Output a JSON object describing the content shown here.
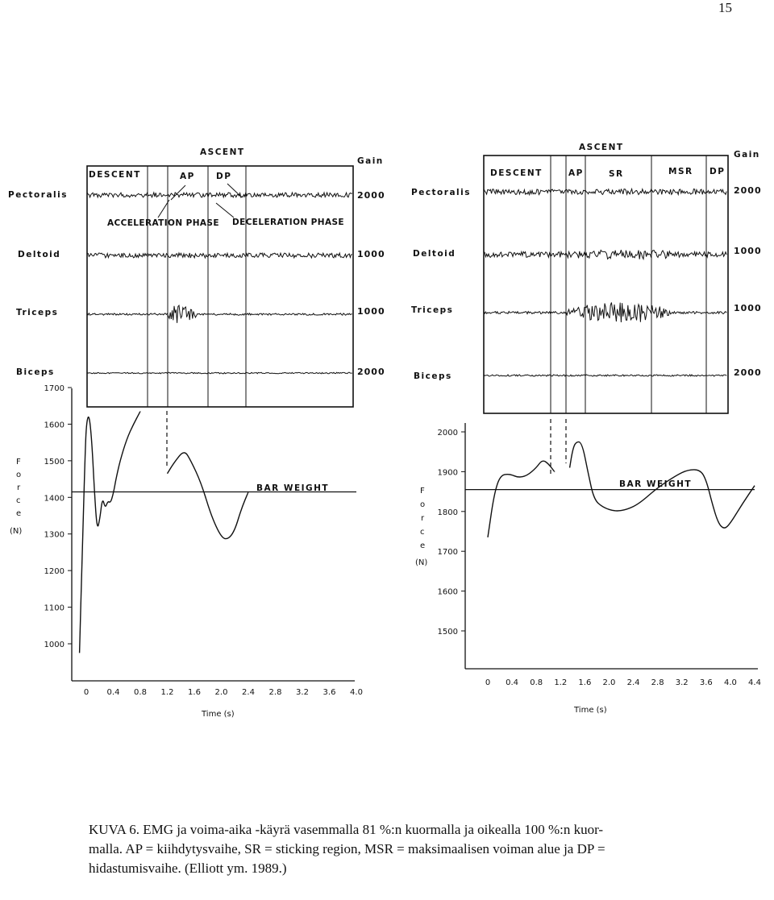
{
  "page_number": "15",
  "caption": {
    "line1": "KUVA 6. EMG ja voima-aika -käyrä vasemmalla 81 %:n kuormalla ja oikealla 100 %:n kuor-",
    "line2": "malla. AP = kiihdytysvaihe, SR = sticking region, MSR = maksimaalisen voiman alue ja DP =",
    "line3": "hidastumisvaihe. (Elliott ym. 1989.)"
  },
  "colors": {
    "ink": "#111111",
    "background": "#ffffff"
  },
  "panels": {
    "left": {
      "phase_header": "ASCENT",
      "gain_header": "Gain",
      "phases": [
        "DESCENT",
        "AP",
        "DP"
      ],
      "annotations": [
        "ACCELERATION PHASE",
        "DECELERATION PHASE"
      ],
      "muscles": [
        {
          "name": "Pectoralis",
          "gain": "2000"
        },
        {
          "name": "Deltoid",
          "gain": "1000"
        },
        {
          "name": "Triceps",
          "gain": "1000"
        },
        {
          "name": "Biceps",
          "gain": "2000"
        }
      ],
      "bar_weight_label": "BAR WEIGHT",
      "ylabel_letters": [
        "F",
        "o",
        "r",
        "c",
        "e"
      ],
      "yunit": "(N)",
      "xlabel": "Time (s)",
      "yticks": [
        "1700",
        "1600",
        "1500",
        "1400",
        "1300",
        "1200",
        "1100",
        "1000"
      ],
      "xticks": [
        "0",
        "0.4",
        "0.8",
        "1.2",
        "1.6",
        "2.0",
        "2.4",
        "2.8",
        "3.2",
        "3.6",
        "4.0"
      ]
    },
    "right": {
      "phase_header": "ASCENT",
      "gain_header": "Gain",
      "phases": [
        "DESCENT",
        "AP",
        "SR",
        "MSR",
        "DP"
      ],
      "muscles": [
        {
          "name": "Pectoralis",
          "gain": "2000"
        },
        {
          "name": "Deltoid",
          "gain": "1000"
        },
        {
          "name": "Triceps",
          "gain": "1000"
        },
        {
          "name": "Biceps",
          "gain": "2000"
        }
      ],
      "bar_weight_label": "BAR WEIGHT",
      "ylabel_letters": [
        "F",
        "o",
        "r",
        "c",
        "e"
      ],
      "yunit": "(N)",
      "xlabel": "Time (s)",
      "yticks": [
        "2000",
        "1900",
        "1800",
        "1700",
        "1600",
        "1500"
      ],
      "xticks": [
        "0",
        "0.4",
        "0.8",
        "1.2",
        "1.6",
        "2.0",
        "2.4",
        "2.8",
        "3.2",
        "3.6",
        "4.0",
        "4.4"
      ]
    }
  },
  "chart_data": [
    {
      "type": "line",
      "xlabel": "Time (s)",
      "ylabel": "Force (N)",
      "xlim": [
        0,
        4.0
      ],
      "ylim": [
        950,
        1700
      ],
      "reference_line": {
        "label": "BAR WEIGHT",
        "y": 1415
      },
      "series": [
        {
          "x": [
            -0.1,
            -0.06,
            -0.02,
            0.0,
            0.04,
            0.08,
            0.12,
            0.16,
            0.2,
            0.24,
            0.28,
            0.32,
            0.36,
            0.4,
            0.44,
            0.5,
            0.6,
            0.7,
            0.8
          ],
          "y": [
            975,
            1250,
            1500,
            1600,
            1630,
            1560,
            1420,
            1310,
            1340,
            1400,
            1370,
            1390,
            1385,
            1410,
            1450,
            1500,
            1560,
            1600,
            1635
          ]
        },
        {
          "x": [
            1.2,
            1.3,
            1.45,
            1.55,
            1.7,
            1.85,
            2.0,
            2.1,
            2.2,
            2.3,
            2.4
          ],
          "y": [
            1465,
            1495,
            1530,
            1500,
            1440,
            1350,
            1290,
            1285,
            1310,
            1370,
            1415
          ]
        }
      ]
    },
    {
      "type": "line",
      "xlabel": "Time (s)",
      "ylabel": "Force (N)",
      "xlim": [
        0,
        4.4
      ],
      "ylim": [
        1400,
        2000
      ],
      "reference_line": {
        "label": "BAR WEIGHT",
        "y": 1855
      },
      "series": [
        {
          "x": [
            0.0,
            0.1,
            0.2,
            0.35,
            0.5,
            0.65,
            0.8,
            0.9,
            1.0,
            1.1
          ],
          "y": [
            1735,
            1840,
            1890,
            1895,
            1885,
            1890,
            1910,
            1930,
            1920,
            1900
          ]
        },
        {
          "x": [
            1.35,
            1.4,
            1.45,
            1.55,
            1.65,
            1.75,
            1.9,
            2.1,
            2.3,
            2.5,
            2.8,
            3.1,
            3.3,
            3.5,
            3.6,
            3.7,
            3.8,
            3.9,
            4.0,
            4.2,
            4.4
          ],
          "y": [
            1910,
            1955,
            1975,
            1975,
            1900,
            1830,
            1810,
            1800,
            1805,
            1820,
            1860,
            1890,
            1905,
            1905,
            1880,
            1820,
            1770,
            1755,
            1770,
            1820,
            1865
          ]
        }
      ]
    }
  ]
}
